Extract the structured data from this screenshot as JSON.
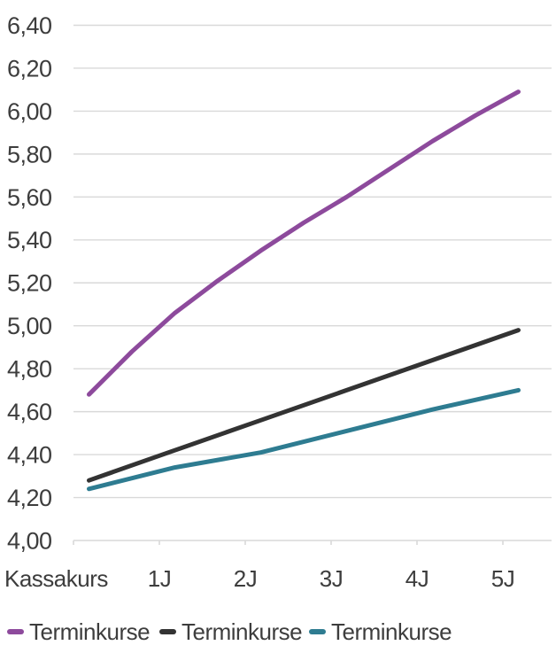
{
  "chart_data": {
    "type": "line",
    "title": "",
    "x_axis": {
      "categories": [
        "Kassakurs",
        "1J",
        "2J",
        "3J",
        "4J",
        "5J"
      ]
    },
    "y_axis": {
      "min": 4.0,
      "max": 6.4,
      "step": 0.2,
      "tick_labels": [
        "6,40",
        "6,20",
        "6,00",
        "5,80",
        "5,60",
        "5,40",
        "5,20",
        "5,00",
        "4,80",
        "4,60",
        "4,40",
        "4,20",
        "4,00"
      ]
    },
    "grid": true,
    "legend_position": "bottom",
    "series": [
      {
        "name": "Terminkurse",
        "color": "#8d4a9c",
        "values": [
          4.68,
          5.06,
          5.35,
          5.6,
          5.86,
          6.09
        ],
        "points": [
          [
            0,
            4.68
          ],
          [
            0.5,
            4.88
          ],
          [
            1,
            5.06
          ],
          [
            1.5,
            5.21
          ],
          [
            2,
            5.35
          ],
          [
            2.5,
            5.48
          ],
          [
            3,
            5.6
          ],
          [
            3.5,
            5.73
          ],
          [
            4,
            5.86
          ],
          [
            4.5,
            5.98
          ],
          [
            5,
            6.09
          ]
        ]
      },
      {
        "name": "Terminkurse",
        "color": "#333333",
        "values": [
          4.28,
          4.42,
          4.56,
          4.7,
          4.84,
          4.98
        ],
        "points": [
          [
            0,
            4.28
          ],
          [
            1,
            4.42
          ],
          [
            2,
            4.56
          ],
          [
            3,
            4.7
          ],
          [
            4,
            4.84
          ],
          [
            5,
            4.98
          ]
        ]
      },
      {
        "name": "Terminkurse",
        "color": "#2e7c91",
        "values": [
          4.24,
          4.34,
          4.41,
          4.51,
          4.61,
          4.7
        ],
        "points": [
          [
            0,
            4.24
          ],
          [
            1,
            4.34
          ],
          [
            2,
            4.41
          ],
          [
            3,
            4.51
          ],
          [
            4,
            4.61
          ],
          [
            5,
            4.7
          ]
        ]
      }
    ],
    "colors": {
      "grid": "#d9d9d9",
      "text": "#3d3d3d"
    }
  }
}
